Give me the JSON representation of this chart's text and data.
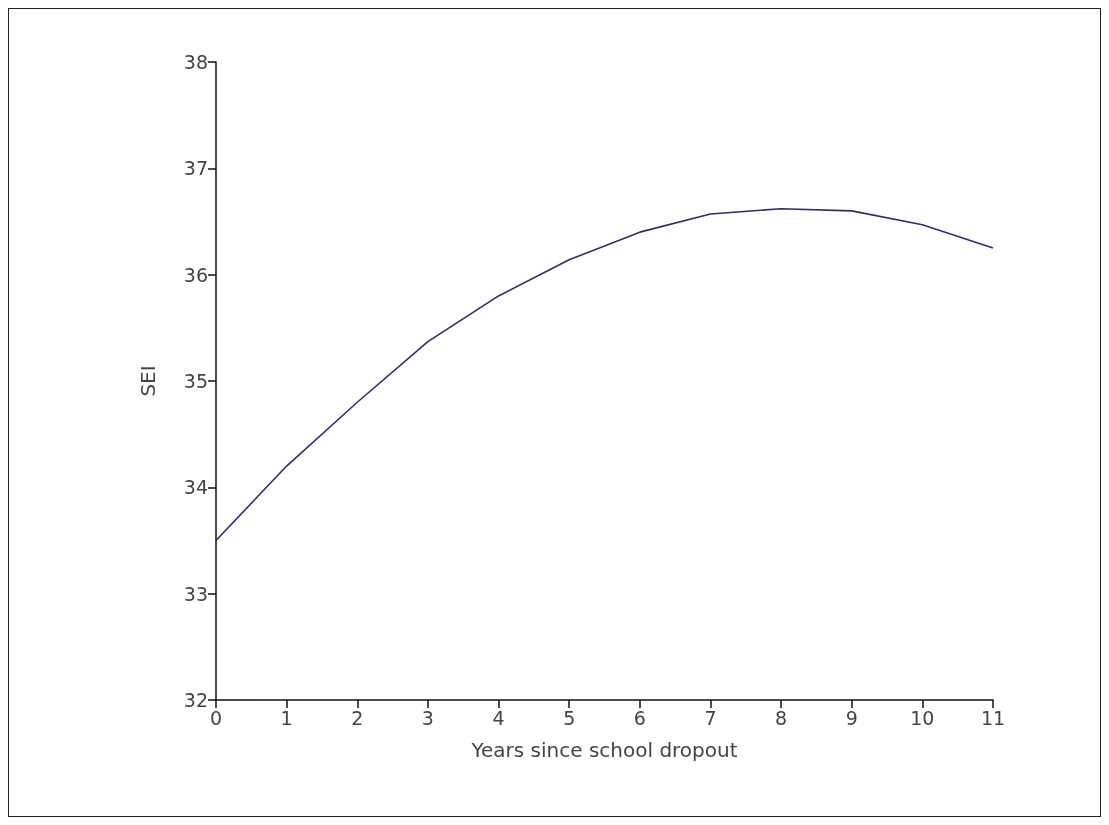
{
  "chart_data": {
    "type": "line",
    "xlabel": "Years since school dropout",
    "ylabel": "SEI",
    "x": [
      0,
      1,
      2,
      3,
      4,
      5,
      6,
      7,
      8,
      9,
      10,
      11
    ],
    "series": [
      {
        "color": "#2b2f6e",
        "values": [
          33.5,
          34.2,
          34.8,
          35.37,
          35.8,
          36.14,
          36.4,
          36.57,
          36.62,
          36.6,
          36.47,
          36.25
        ]
      }
    ],
    "xlim": [
      0,
      11
    ],
    "xticks": [
      0,
      1,
      2,
      3,
      4,
      5,
      6,
      7,
      8,
      9,
      10,
      11
    ],
    "ylim": [
      32,
      38
    ],
    "yticks": [
      32,
      33,
      34,
      35,
      36,
      37,
      38
    ],
    "grid": false,
    "marker": "none",
    "line_style": "solid"
  }
}
